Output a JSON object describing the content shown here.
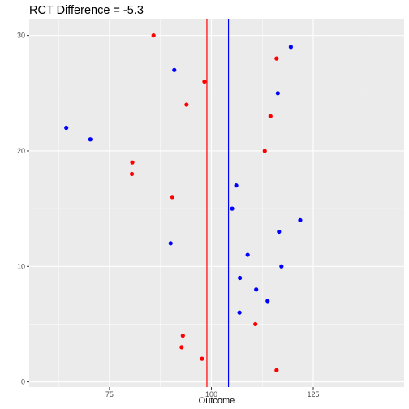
{
  "chart_data": {
    "type": "scatter",
    "title": "RCT Difference = -5.3",
    "xlabel": "Outcome",
    "ylabel": "",
    "xlim": [
      55.3,
      147.3
    ],
    "ylim": [
      -0.45,
      31.45
    ],
    "x_ticks": [
      75,
      100,
      125
    ],
    "x_tick_labels": [
      "75",
      "100",
      "125"
    ],
    "y_ticks": [
      0,
      10,
      20,
      30
    ],
    "y_tick_labels": [
      "0",
      "10",
      "20",
      "30"
    ],
    "grid": true,
    "legend": "none",
    "colors": {
      "group_a": "#ff0000",
      "group_b": "#0000ff",
      "panel": "#ebebeb",
      "grid": "#ffffff"
    },
    "vlines": [
      {
        "x": 98.9,
        "color": "#ff0000"
      },
      {
        "x": 104.2,
        "color": "#0000ff"
      }
    ],
    "series": [
      {
        "color": "#ff0000",
        "points": [
          {
            "x": 116.0,
            "y": 1
          },
          {
            "x": 97.7,
            "y": 2
          },
          {
            "x": 92.7,
            "y": 3
          },
          {
            "x": 93.0,
            "y": 4
          },
          {
            "x": 110.8,
            "y": 5
          },
          {
            "x": 90.4,
            "y": 16
          },
          {
            "x": 80.5,
            "y": 18
          },
          {
            "x": 80.6,
            "y": 19
          },
          {
            "x": 113.1,
            "y": 20
          },
          {
            "x": 114.5,
            "y": 23
          },
          {
            "x": 93.9,
            "y": 24
          },
          {
            "x": 98.3,
            "y": 26
          },
          {
            "x": 116.0,
            "y": 28
          },
          {
            "x": 85.8,
            "y": 30
          }
        ]
      },
      {
        "color": "#0000ff",
        "points": [
          {
            "x": 106.9,
            "y": 6
          },
          {
            "x": 113.8,
            "y": 7
          },
          {
            "x": 111.0,
            "y": 8
          },
          {
            "x": 107.0,
            "y": 9
          },
          {
            "x": 117.2,
            "y": 10
          },
          {
            "x": 108.9,
            "y": 11
          },
          {
            "x": 90.0,
            "y": 12
          },
          {
            "x": 116.6,
            "y": 13
          },
          {
            "x": 121.8,
            "y": 14
          },
          {
            "x": 105.1,
            "y": 15
          },
          {
            "x": 106.1,
            "y": 17
          },
          {
            "x": 70.3,
            "y": 21
          },
          {
            "x": 64.4,
            "y": 22
          },
          {
            "x": 116.3,
            "y": 25
          },
          {
            "x": 90.9,
            "y": 27
          },
          {
            "x": 119.5,
            "y": 29
          }
        ]
      }
    ]
  }
}
